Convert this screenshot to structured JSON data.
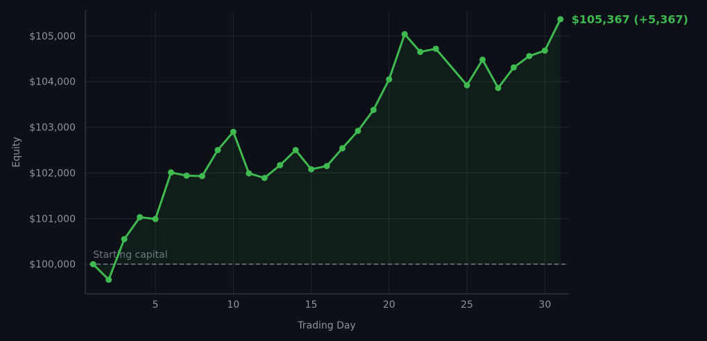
{
  "chart_data": {
    "type": "line",
    "xlabel": "Trading Day",
    "ylabel": "Equity",
    "xlim": [
      0.5,
      31.5
    ],
    "ylim": [
      99350,
      105560
    ],
    "xticks": [
      5,
      10,
      15,
      20,
      25,
      30
    ],
    "yticks": [
      100000,
      101000,
      102000,
      103000,
      104000,
      105000
    ],
    "ytick_labels": [
      "$100,000",
      "$101,000",
      "$102,000",
      "$103,000",
      "$104,000",
      "$105,000"
    ],
    "grid": true,
    "reference_line": {
      "value": 100000,
      "label": "Starting capital"
    },
    "end_label": "$105,367  (+5,367)",
    "series": [
      {
        "x": [
          1,
          2,
          3,
          4,
          5,
          6,
          7,
          8,
          9,
          10,
          11,
          12,
          13,
          14,
          15,
          16,
          17,
          18,
          19,
          20,
          21,
          22,
          23,
          25,
          26,
          27,
          28,
          29,
          30,
          31
        ],
        "values": [
          100000,
          99660,
          100550,
          101030,
          100990,
          102010,
          101940,
          101930,
          102500,
          102900,
          101990,
          101890,
          102170,
          102500,
          102080,
          102150,
          102540,
          102920,
          103380,
          104050,
          105040,
          104650,
          104720,
          103920,
          104480,
          103860,
          104310,
          104560,
          104680,
          105367
        ]
      }
    ],
    "colors": {
      "line": "#3fb950",
      "background": "#0d1017",
      "grid": "#21262d",
      "reference": "#6e7681",
      "text": "#8b949e"
    }
  }
}
